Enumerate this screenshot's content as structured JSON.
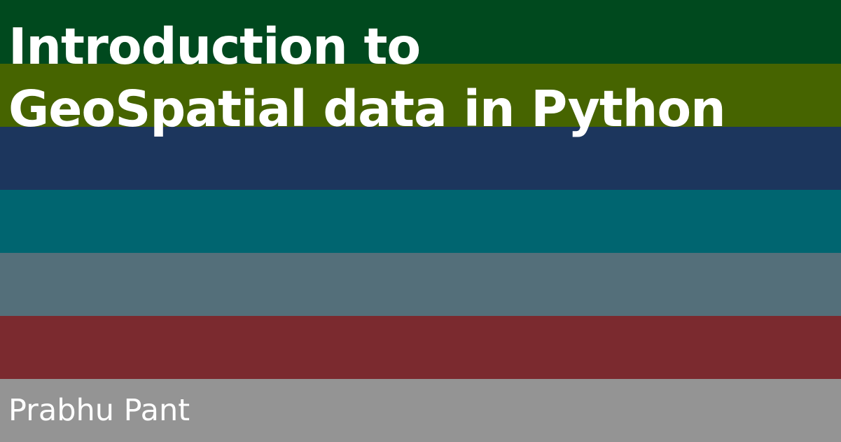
{
  "banner": {
    "title_line1": "Introduction to",
    "title_line2": "GeoSpatial data in Python",
    "author": "Prabhu Pant"
  },
  "colors": {
    "stripes": [
      "#00491e",
      "#466400",
      "#1c365d",
      "#006570",
      "#546f7a",
      "#7b2a2f",
      "#949494"
    ],
    "text": "#ffffff"
  }
}
